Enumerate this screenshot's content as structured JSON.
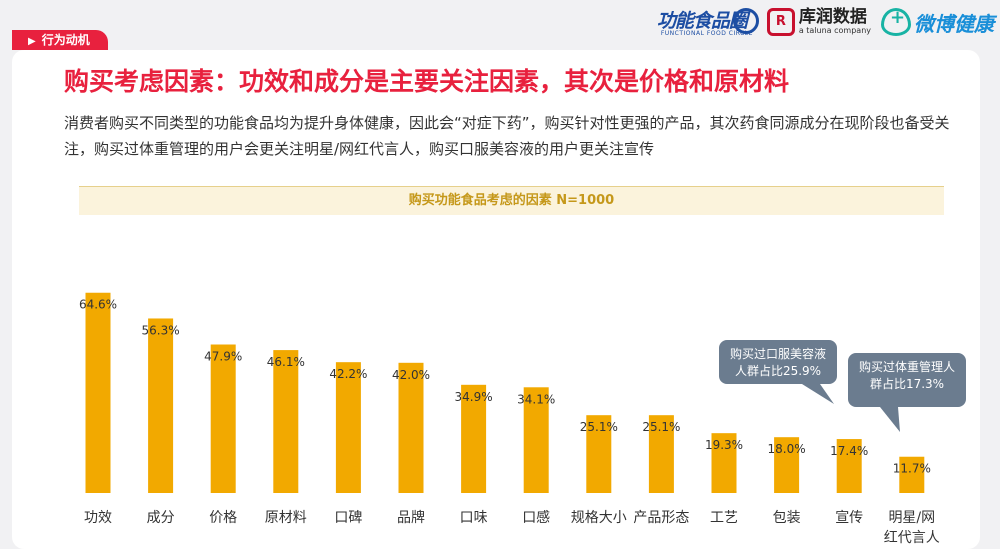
{
  "tag": {
    "label": "行为动机"
  },
  "logos": {
    "functional_food": {
      "main": "功能食品圈",
      "sub": "FUNCTIONAL FOOD CIRCLE"
    },
    "kantar": {
      "name": "库润数据",
      "sub": "a taluna company",
      "mark": "R"
    },
    "weibo": {
      "name": "微博健康"
    }
  },
  "page": {
    "title": "购买考虑因素：功效和成分是主要关注因素，其次是价格和原材料",
    "description": "消费者购买不同类型的功能食品均为提升身体健康，因此会“对症下药”，购买针对性更强的产品，其次药食同源成分在现阶段也备受关注，购买过体重管理的用户会更关注明星/网红代言人，购买口服美容液的用户更关注宣传"
  },
  "callouts": [
    {
      "text": "购买过口服美容液人群占比25.9%"
    },
    {
      "text": "购买过体重管理人群占比17.3%"
    }
  ],
  "colors": {
    "accent": "#e8213e",
    "bar": "#f2a900",
    "callout": "#6b7c8f"
  },
  "chart_data": {
    "type": "bar",
    "title": "购买功能食品考虑的因素 N=1000",
    "categories": [
      "功效",
      "成分",
      "价格",
      "原材料",
      "口碑",
      "品牌",
      "口味",
      "口感",
      "规格大小",
      "产品形态",
      "工艺",
      "包装",
      "宣传",
      "明星/网红代言人"
    ],
    "values": [
      64.6,
      56.3,
      47.9,
      46.1,
      42.2,
      42.0,
      34.9,
      34.1,
      25.1,
      25.1,
      19.3,
      18.0,
      17.4,
      11.7
    ],
    "value_labels": [
      "64.6%",
      "56.3%",
      "47.9%",
      "46.1%",
      "42.2%",
      "42.0%",
      "34.9%",
      "34.1%",
      "25.1%",
      "25.1%",
      "19.3%",
      "18.0%",
      "17.4%",
      "11.7%"
    ],
    "category_lines": [
      [
        "功效"
      ],
      [
        "成分"
      ],
      [
        "价格"
      ],
      [
        "原材料"
      ],
      [
        "口碑"
      ],
      [
        "品牌"
      ],
      [
        "口味"
      ],
      [
        "口感"
      ],
      [
        "规格大小"
      ],
      [
        "产品形态"
      ],
      [
        "工艺"
      ],
      [
        "包装"
      ],
      [
        "宣传"
      ],
      [
        "明星/网",
        "红代言人"
      ]
    ],
    "ylim": [
      0,
      70
    ],
    "grid": false,
    "legend": "none"
  }
}
